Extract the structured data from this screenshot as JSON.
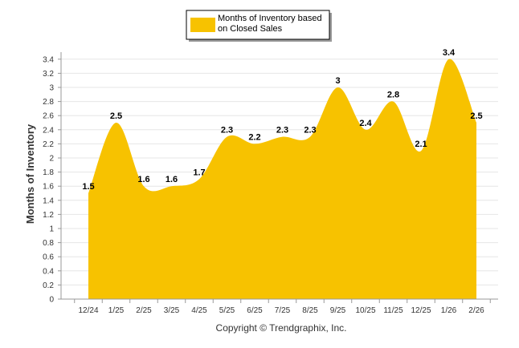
{
  "chart_data": {
    "type": "area",
    "title": "",
    "xlabel": "",
    "ylabel": "Months of Inventory",
    "categories": [
      "12/24",
      "1/25",
      "2/25",
      "3/25",
      "4/25",
      "5/25",
      "6/25",
      "7/25",
      "8/25",
      "9/25",
      "10/25",
      "11/25",
      "12/25",
      "1/26",
      "2/26"
    ],
    "series": [
      {
        "name": "Months of Inventory based on Closed Sales",
        "values": [
          1.5,
          2.5,
          1.6,
          1.6,
          1.7,
          2.3,
          2.2,
          2.3,
          2.3,
          3,
          2.4,
          2.8,
          2.1,
          3.4,
          2.5
        ],
        "data_labels": [
          "1.5",
          "2.5",
          "1.6",
          "1.6",
          "1.7",
          "2.3",
          "2.2",
          "2.3",
          "2.3",
          "3",
          "2.4",
          "2.8",
          "2.1",
          "3.4",
          "2.5"
        ]
      }
    ],
    "yticks": [
      "0",
      "0.2",
      "0.4",
      "0.6",
      "0.8",
      "1",
      "1.2",
      "1.4",
      "1.6",
      "1.8",
      "2",
      "2.2",
      "2.4",
      "2.6",
      "2.8",
      "3",
      "3.2",
      "3.4"
    ],
    "ylim": [
      0,
      3.5
    ],
    "grid": true,
    "legend_lines": [
      "Months of Inventory based",
      "on Closed Sales"
    ],
    "legend_position": "top-center",
    "credit": "Copyright © Trendgraphix, Inc."
  },
  "colors": {
    "fill": "#F7C200",
    "grid": "#E6E6E6",
    "axis": "#999999"
  }
}
